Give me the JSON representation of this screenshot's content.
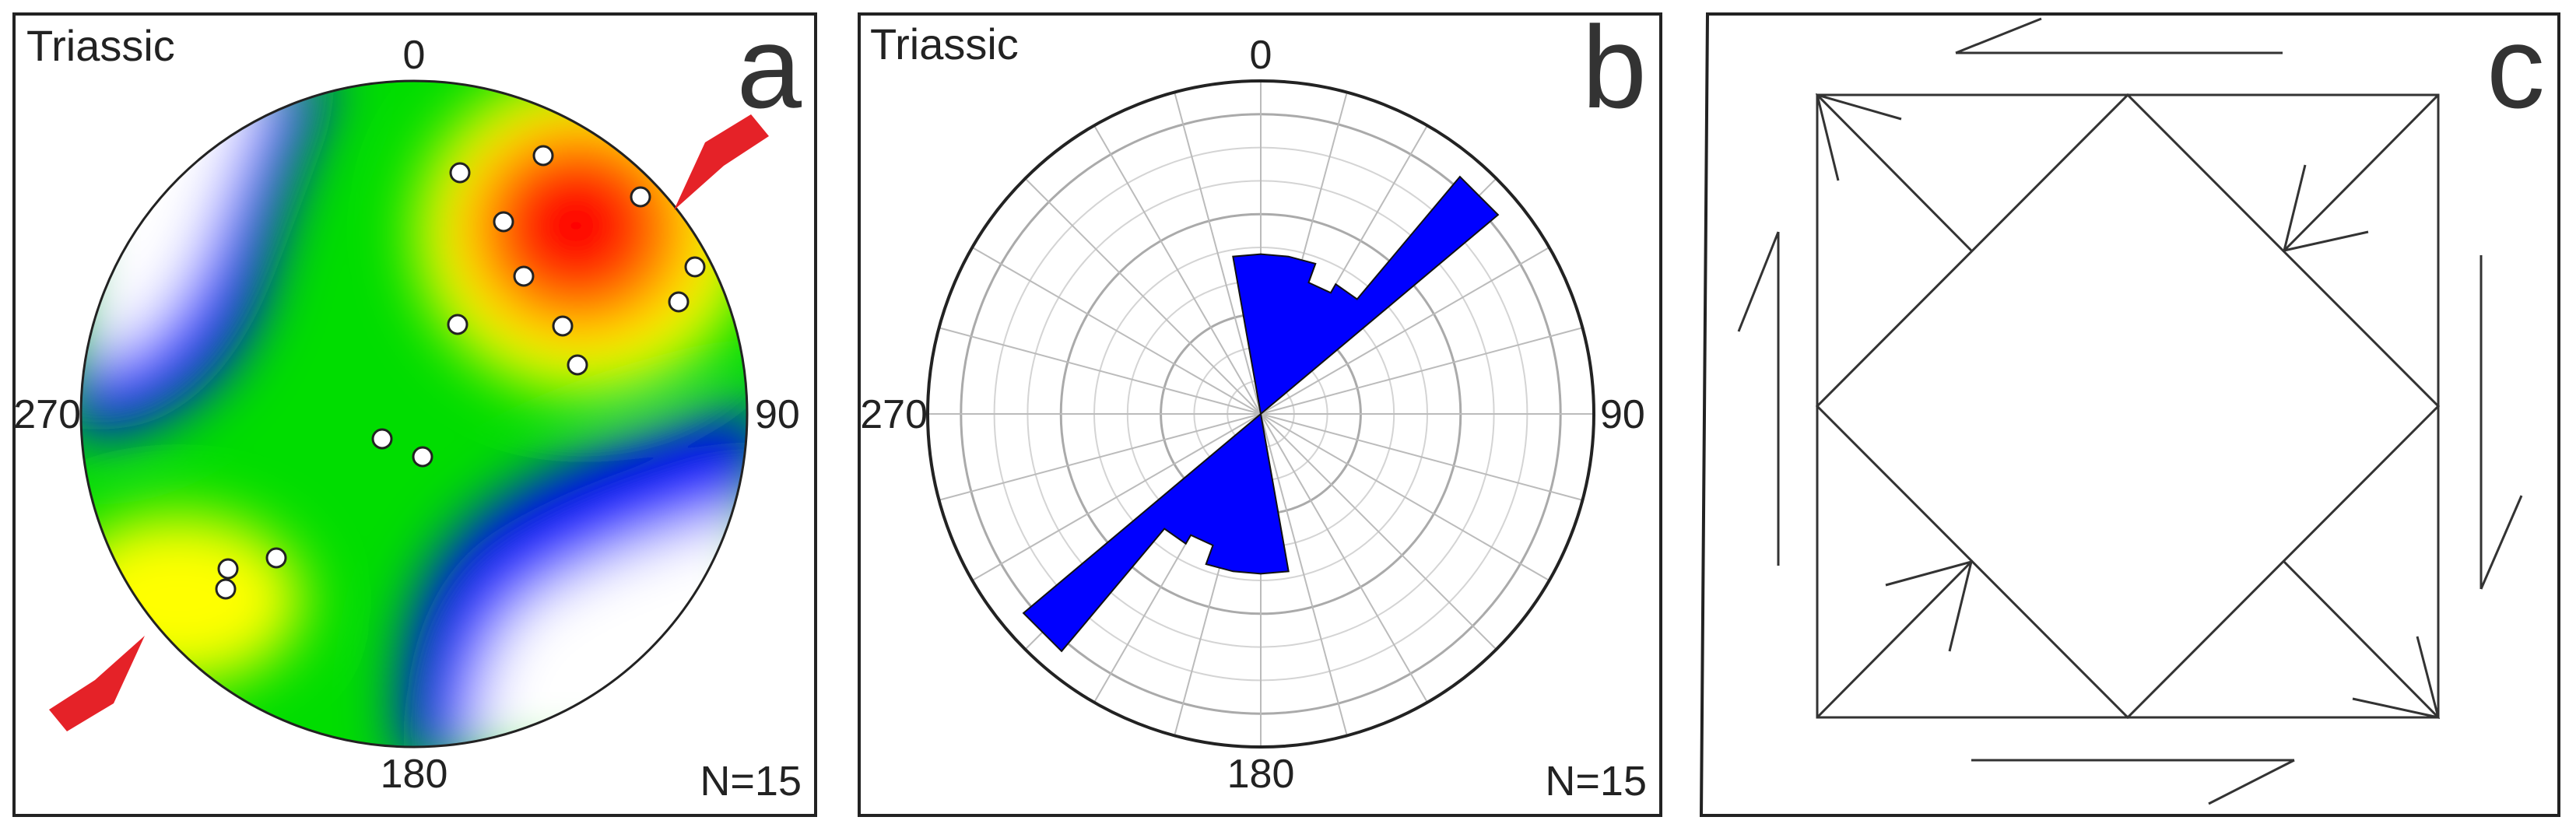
{
  "panels": {
    "a": {
      "letter": "a",
      "title": "Triassic",
      "angle_labels": {
        "n": "0",
        "e": "90",
        "s": "180",
        "w": "270"
      },
      "count": "N=15",
      "colors": {
        "red": "#ff0000",
        "yellow": "#ffff00",
        "green": "#00dd00",
        "blue": "#0000ff",
        "white": "#ffffff",
        "arrow": "#e52228"
      },
      "arrows": [
        "sigma1-compression-NE",
        "sigma1-compression-SW"
      ]
    },
    "b": {
      "letter": "b",
      "title": "Triassic",
      "angle_labels": {
        "n": "0",
        "e": "90",
        "s": "180",
        "w": "270"
      },
      "count": "N=15",
      "fill_color": "#0000ff"
    },
    "c": {
      "letter": "c",
      "description_icon": "shear-model-diagram"
    }
  },
  "chart_data": {
    "type": "rose",
    "panel": "b",
    "title": "Triassic",
    "n": "N=15",
    "bin_width_deg": 10,
    "bins_azimuth": [
      0,
      10,
      20,
      30,
      40,
      50,
      60,
      70,
      80,
      90,
      100,
      110,
      120,
      130,
      140,
      150,
      160,
      170
    ],
    "values_relative": [
      0.48,
      0.48,
      0.42,
      0.45,
      0.93,
      0.0,
      0.0,
      0.0,
      0.0,
      0.0,
      0.0,
      0.0,
      0.0,
      0.0,
      0.0,
      0.0,
      0.0,
      0.48
    ],
    "symmetric": true
  }
}
